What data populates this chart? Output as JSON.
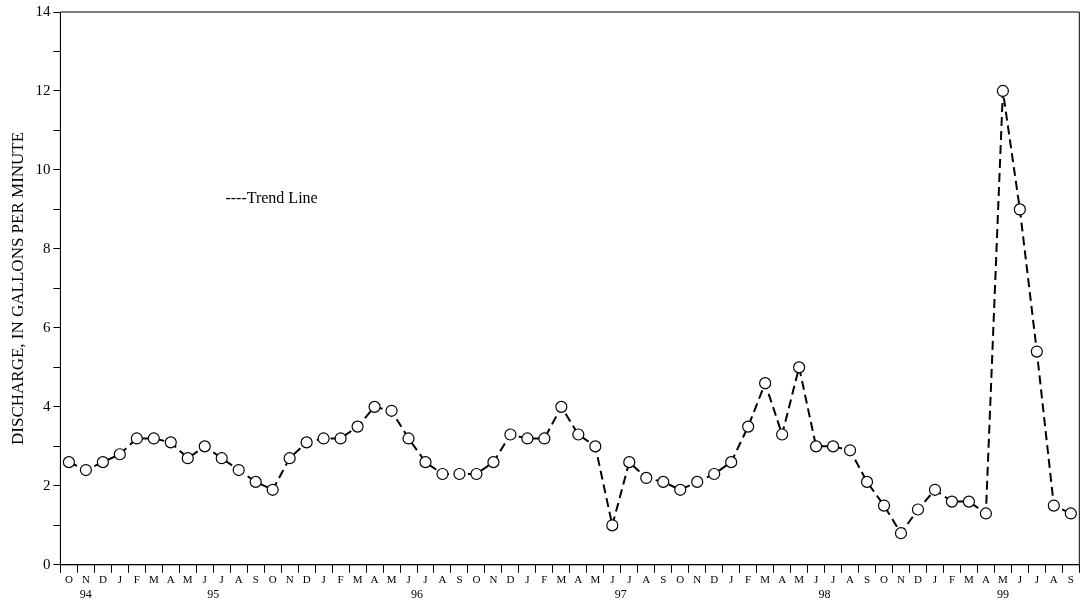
{
  "chart_data": {
    "type": "line",
    "ylabel": "DISCHARGE, IN GALLONS PER MINUTE",
    "annotations": [
      "----Trend Line",
      "94",
      "95",
      "96",
      "97",
      "98",
      "99"
    ],
    "categories": [
      "O",
      "N",
      "D",
      "J",
      "F",
      "M",
      "A",
      "M",
      "J",
      "J",
      "A",
      "S",
      "O",
      "N",
      "D",
      "J",
      "F",
      "M",
      "A",
      "M",
      "J",
      "J",
      "A",
      "S",
      "O",
      "N",
      "D",
      "J",
      "F",
      "M",
      "A",
      "M",
      "J",
      "J",
      "A",
      "S",
      "O",
      "N",
      "D",
      "J",
      "F",
      "M",
      "A",
      "M",
      "J",
      "J",
      "A",
      "S",
      "O",
      "N",
      "D",
      "J",
      "F",
      "M",
      "A",
      "M",
      "J",
      "J",
      "A",
      "S"
    ],
    "series": [
      {
        "color": "#000000",
        "values": [
          2.6,
          2.4,
          2.6,
          2.8,
          3.2,
          3.2,
          3.1,
          2.7,
          3.0,
          2.7,
          2.4,
          2.1,
          1.9,
          2.7,
          3.1,
          3.2,
          3.2,
          3.5,
          4.0,
          3.9,
          3.2,
          2.6,
          2.3,
          2.3,
          2.3,
          2.6,
          3.3,
          3.2,
          3.2,
          4.0,
          3.3,
          3.0,
          1.0,
          2.6,
          2.2,
          2.1,
          1.9,
          2.1,
          2.3,
          2.6,
          3.5,
          4.6,
          3.3,
          5.0,
          3.0,
          3.0,
          2.9,
          2.1,
          1.5,
          0.8,
          1.4,
          1.9,
          1.6,
          1.6,
          1.3,
          12.0,
          9.0,
          5.4,
          1.5,
          1.3
        ]
      }
    ],
    "marker": "circle",
    "line_style": "dashed",
    "legend": false,
    "grid": false,
    "ylim": [
      0,
      14
    ],
    "yticks": [
      0,
      {
        "value": 1,
        "label": null
      },
      2,
      {
        "value": 3,
        "label": null
      },
      4,
      {
        "value": 5,
        "label": null
      },
      6,
      {
        "value": 7,
        "label": null
      },
      8,
      {
        "value": 9,
        "label": null
      },
      10,
      {
        "value": 11,
        "label": null
      },
      12,
      {
        "value": 13,
        "label": null
      },
      14
    ]
  }
}
